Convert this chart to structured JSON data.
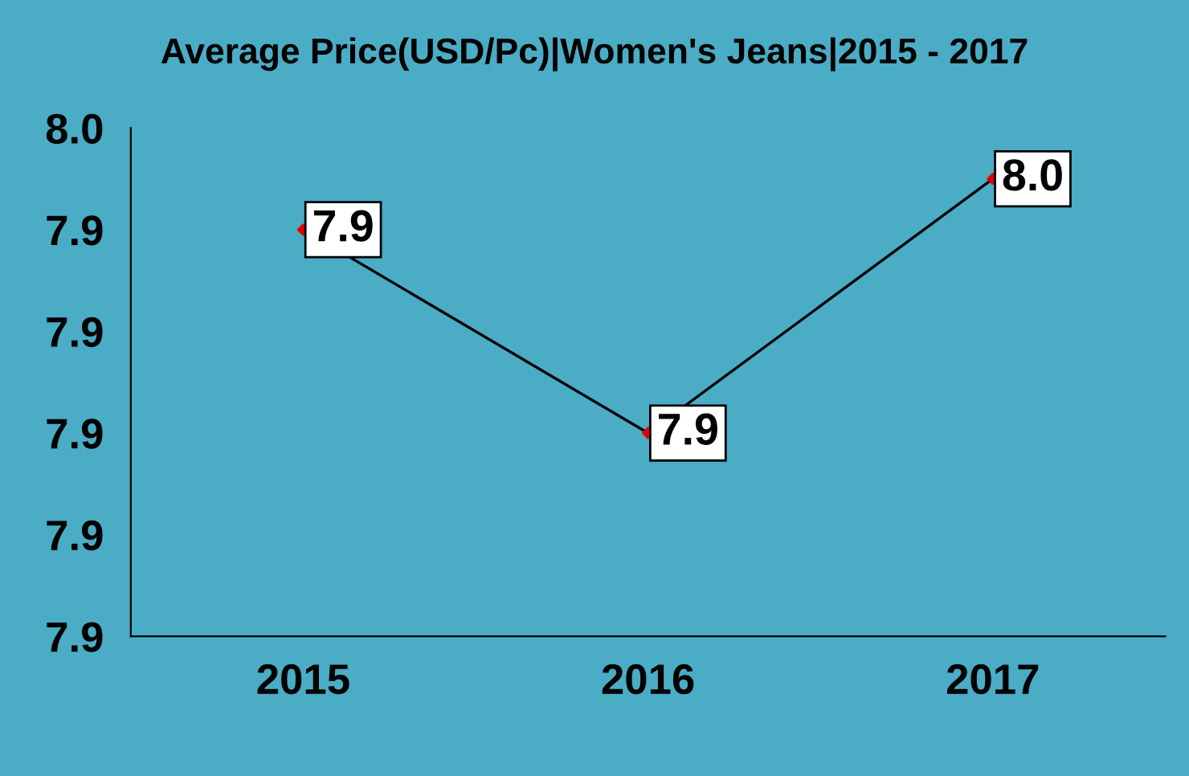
{
  "chart_data": {
    "type": "line",
    "title": "Average Price(USD/Pc)|Women's Jeans|2015 - 2017",
    "categories": [
      "2015",
      "2016",
      "2017"
    ],
    "series": [
      {
        "color": "#000000",
        "values": [
          7.94,
          7.9,
          7.95
        ],
        "value_labels": [
          "7.9",
          "7.9",
          "8.0"
        ]
      }
    ],
    "ylim": [
      7.86,
      7.96
    ],
    "yticks": [
      {
        "value": 7.86,
        "label": "7.9"
      },
      {
        "value": 7.88,
        "label": "7.9"
      },
      {
        "value": 7.9,
        "label": "7.9"
      },
      {
        "value": 7.92,
        "label": "7.9"
      },
      {
        "value": 7.94,
        "label": "7.9"
      },
      {
        "value": 7.96,
        "label": "8.0"
      }
    ],
    "marker": "diamond",
    "grid": false,
    "legend": false
  }
}
